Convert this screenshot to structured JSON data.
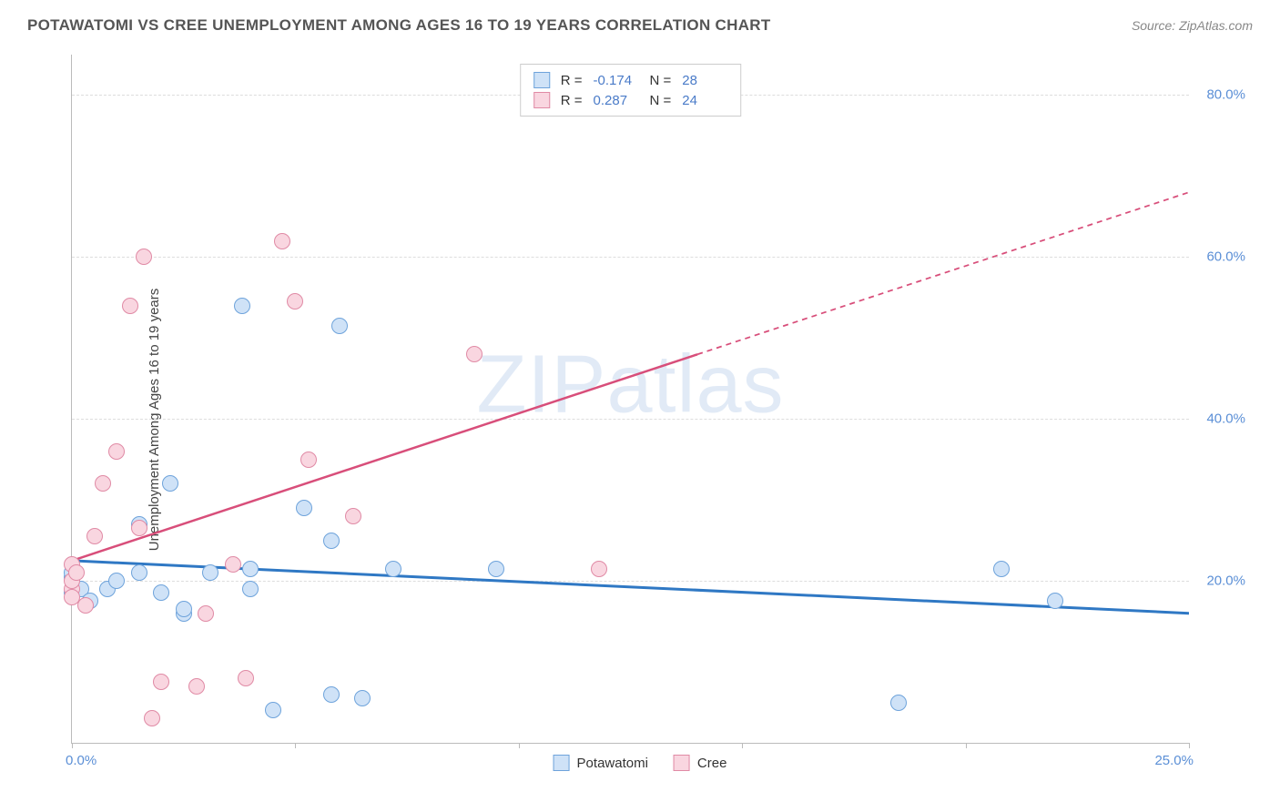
{
  "header": {
    "title": "POTAWATOMI VS CREE UNEMPLOYMENT AMONG AGES 16 TO 19 YEARS CORRELATION CHART",
    "source_prefix": "Source: ",
    "source_name": "ZipAtlas.com"
  },
  "watermark": {
    "part1": "ZIP",
    "part2": "atlas"
  },
  "chart": {
    "type": "scatter",
    "y_axis_label": "Unemployment Among Ages 16 to 19 years",
    "xlim": [
      0,
      25
    ],
    "ylim": [
      0,
      85
    ],
    "x_ticks": [
      0,
      5,
      10,
      15,
      20,
      25
    ],
    "y_ticks": [
      20,
      40,
      60,
      80
    ],
    "y_tick_labels": [
      "20.0%",
      "40.0%",
      "60.0%",
      "80.0%"
    ],
    "x_tick_label_left": "0.0%",
    "x_tick_label_right": "25.0%",
    "background_color": "#ffffff",
    "grid_color": "#dddddd",
    "axis_color": "#bbbbbb",
    "tick_label_color": "#5b8fd6",
    "series": [
      {
        "name": "Potawatomi",
        "r": "-0.174",
        "n": "28",
        "marker_fill": "#cfe2f7",
        "marker_stroke": "#6ea3db",
        "marker_size": 18,
        "trend": {
          "y_at_x0": 22.5,
          "y_at_xmax": 16.0,
          "color": "#2f78c4",
          "width": 3
        },
        "points": [
          [
            0.0,
            18.5
          ],
          [
            0.0,
            20.5
          ],
          [
            0.0,
            21.0
          ],
          [
            0.2,
            19.0
          ],
          [
            0.4,
            17.5
          ],
          [
            0.8,
            19.0
          ],
          [
            1.0,
            20.0
          ],
          [
            1.5,
            21.0
          ],
          [
            1.5,
            27.0
          ],
          [
            2.0,
            18.5
          ],
          [
            2.2,
            32.0
          ],
          [
            2.5,
            16.0
          ],
          [
            2.5,
            16.5
          ],
          [
            3.1,
            21.0
          ],
          [
            3.8,
            54.0
          ],
          [
            4.0,
            21.5
          ],
          [
            4.0,
            19.0
          ],
          [
            4.5,
            4.0
          ],
          [
            5.2,
            29.0
          ],
          [
            5.8,
            6.0
          ],
          [
            5.8,
            25.0
          ],
          [
            6.0,
            51.5
          ],
          [
            6.5,
            5.5
          ],
          [
            7.2,
            21.5
          ],
          [
            9.5,
            21.5
          ],
          [
            18.5,
            5.0
          ],
          [
            20.8,
            21.5
          ],
          [
            22.0,
            17.5
          ]
        ]
      },
      {
        "name": "Cree",
        "r": "0.287",
        "n": "24",
        "marker_fill": "#f9d6e0",
        "marker_stroke": "#e08aa5",
        "marker_size": 18,
        "trend": {
          "y_at_x0": 22.5,
          "y_at_xmax": 68.0,
          "solid_to_x": 14.0,
          "color": "#d84e7a",
          "width": 2.5
        },
        "points": [
          [
            0.0,
            22.0
          ],
          [
            0.0,
            19.0
          ],
          [
            0.0,
            20.0
          ],
          [
            0.0,
            18.0
          ],
          [
            0.1,
            21.0
          ],
          [
            0.3,
            17.0
          ],
          [
            0.5,
            25.5
          ],
          [
            0.7,
            32.0
          ],
          [
            1.0,
            36.0
          ],
          [
            1.3,
            54.0
          ],
          [
            1.5,
            26.5
          ],
          [
            1.6,
            60.0
          ],
          [
            1.8,
            3.0
          ],
          [
            2.0,
            7.5
          ],
          [
            2.8,
            7.0
          ],
          [
            3.0,
            16.0
          ],
          [
            3.6,
            22.0
          ],
          [
            3.9,
            8.0
          ],
          [
            4.7,
            62.0
          ],
          [
            5.0,
            54.5
          ],
          [
            5.3,
            35.0
          ],
          [
            6.3,
            28.0
          ],
          [
            9.0,
            48.0
          ],
          [
            11.8,
            21.5
          ]
        ]
      }
    ]
  },
  "legend_top": {
    "r_label": "R =",
    "n_label": "N ="
  },
  "legend_bottom": [
    {
      "label": "Potawatomi",
      "fill": "#cfe2f7",
      "stroke": "#6ea3db"
    },
    {
      "label": "Cree",
      "fill": "#f9d6e0",
      "stroke": "#e08aa5"
    }
  ]
}
